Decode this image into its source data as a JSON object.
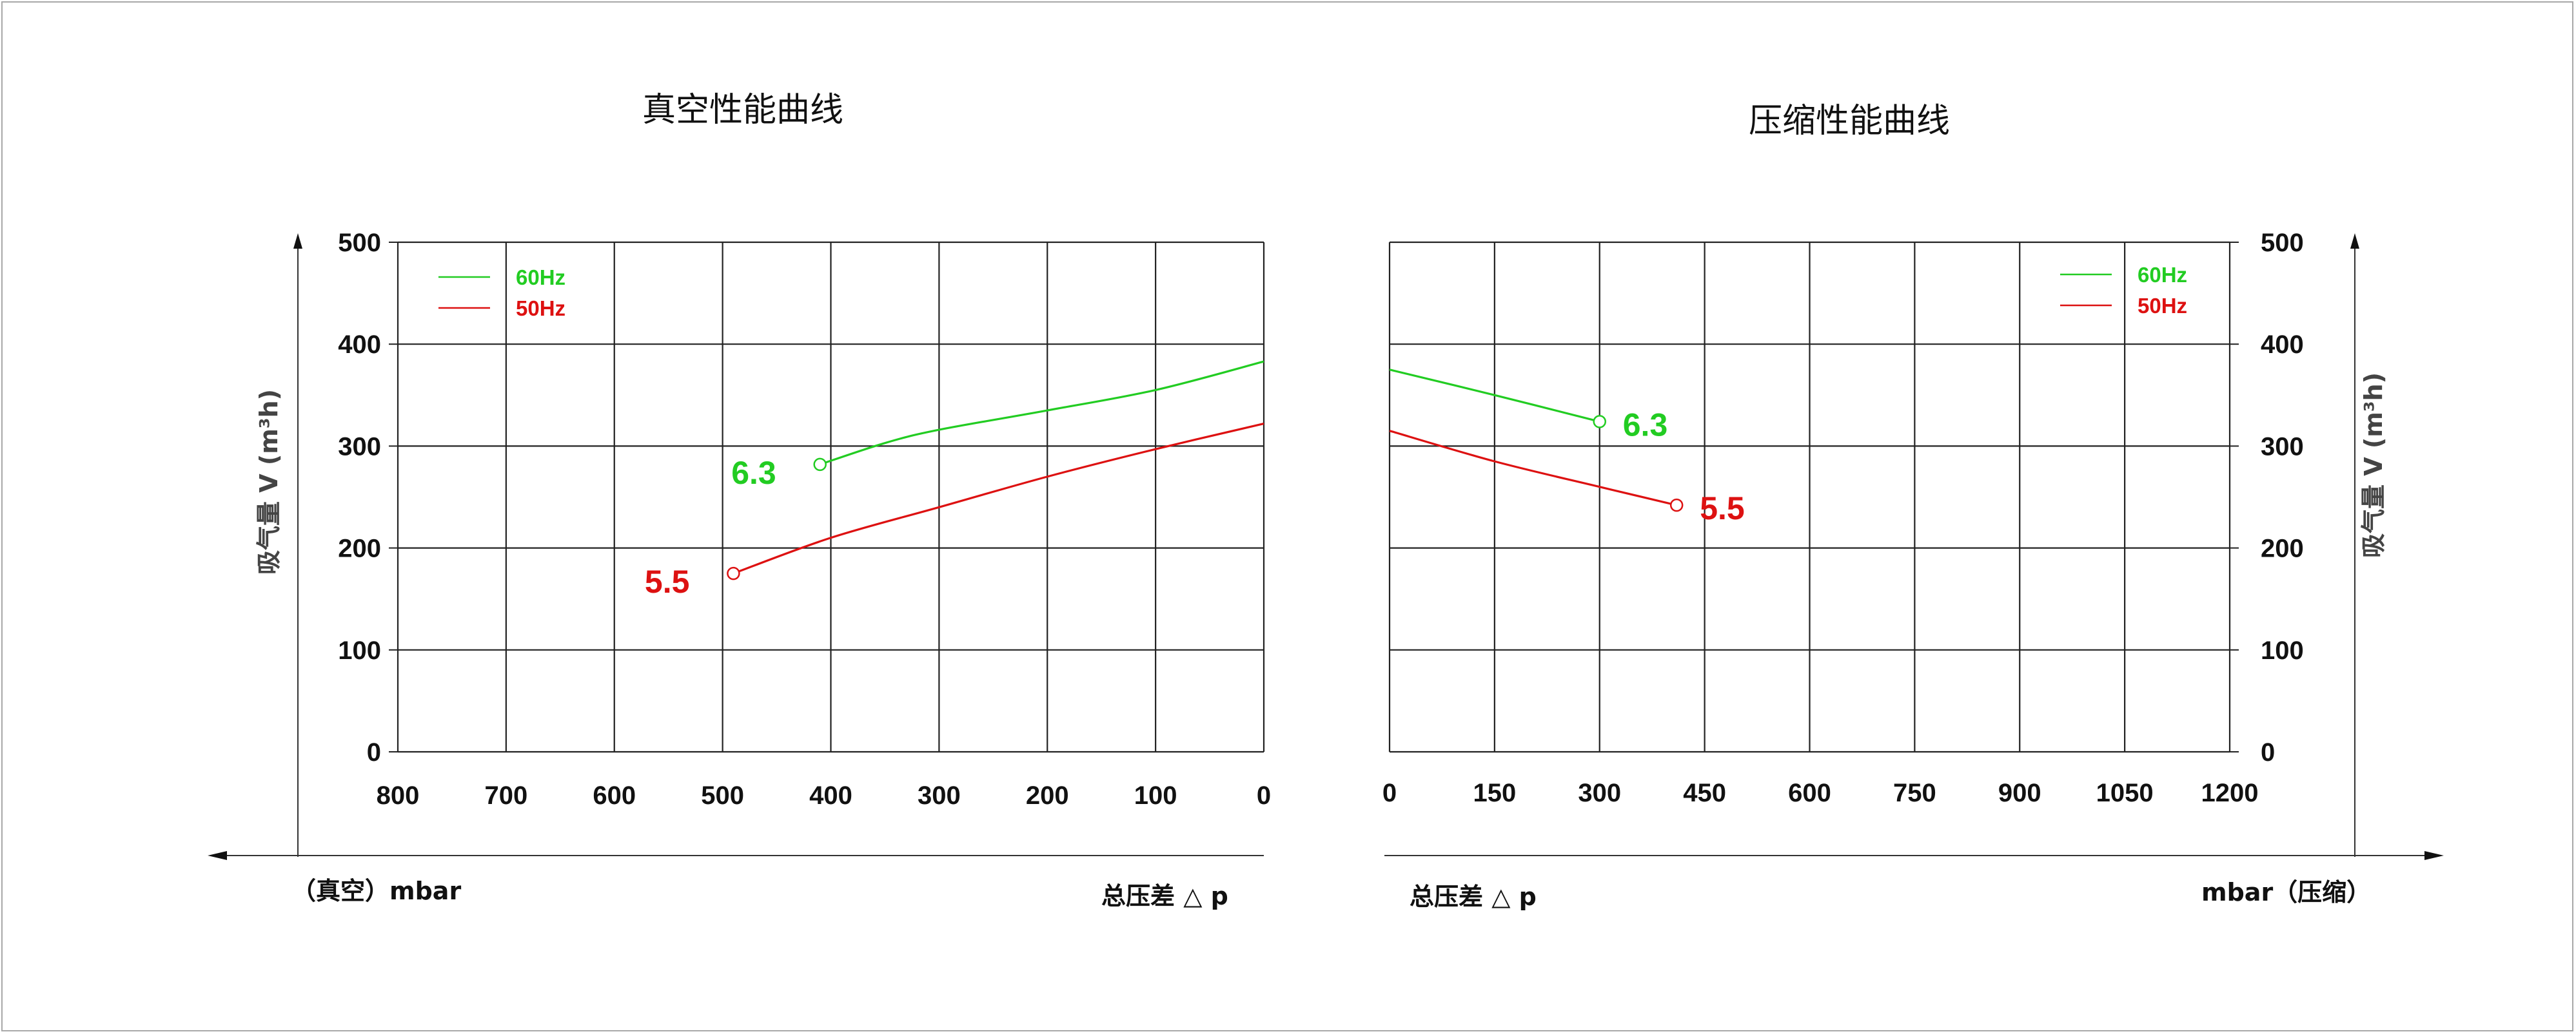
{
  "chart_data": [
    {
      "type": "line",
      "title": "真空性能曲线",
      "ylabel": "吸气量 V (m³h)",
      "x_axis_left_label": "（真空）mbar",
      "x_axis_right_label": "总压差 △ p",
      "x_ticks": [
        800,
        700,
        600,
        500,
        400,
        300,
        200,
        100,
        0
      ],
      "x_reversed": true,
      "xlim": [
        800,
        0
      ],
      "y_ticks": [
        0,
        100,
        200,
        300,
        400,
        500
      ],
      "ylim": [
        0,
        500
      ],
      "grid": true,
      "legend_position": "top-left",
      "series": [
        {
          "name": "60Hz",
          "color": "#22cc22",
          "x": [
            410,
            350,
            300,
            200,
            100,
            0
          ],
          "y": [
            282,
            303,
            316,
            335,
            355,
            383
          ],
          "end_label": "6.3"
        },
        {
          "name": "50Hz",
          "color": "#dd1111",
          "x": [
            490,
            400,
            300,
            200,
            100,
            0
          ],
          "y": [
            175,
            210,
            240,
            270,
            297,
            322
          ],
          "end_label": "5.5"
        }
      ]
    },
    {
      "type": "line",
      "title": "压缩性能曲线",
      "ylabel": "吸气量 V (m³h)",
      "x_axis_left_label": "总压差 △ p",
      "x_axis_right_label": "mbar（压缩）",
      "x_ticks": [
        0,
        150,
        300,
        450,
        600,
        750,
        900,
        1050,
        1200
      ],
      "xlim": [
        0,
        1200
      ],
      "y_ticks": [
        0,
        100,
        200,
        300,
        400,
        500
      ],
      "ylim": [
        0,
        500
      ],
      "grid": true,
      "legend_position": "top-right",
      "series": [
        {
          "name": "60Hz",
          "color": "#22cc22",
          "x": [
            0,
            150,
            300
          ],
          "y": [
            375,
            350,
            324
          ],
          "end_label": "6.3"
        },
        {
          "name": "50Hz",
          "color": "#dd1111",
          "x": [
            0,
            150,
            300,
            410
          ],
          "y": [
            315,
            285,
            260,
            242
          ],
          "end_label": "5.5"
        }
      ]
    }
  ]
}
